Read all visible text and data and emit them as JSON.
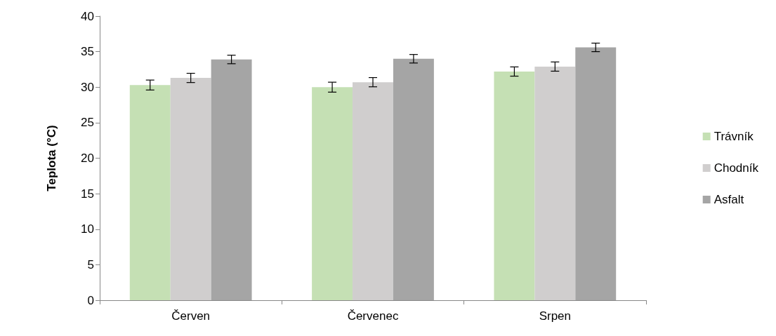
{
  "chart_data": {
    "type": "bar",
    "ylabel": "Teplota (°C)",
    "categories": [
      "Červen",
      "Červenec",
      "Srpen"
    ],
    "series": [
      {
        "name": "Trávník",
        "color": "#c5e0b4",
        "values": [
          30.3,
          30.0,
          32.2
        ],
        "errors": [
          0.7,
          0.7,
          0.65
        ]
      },
      {
        "name": "Chodník",
        "color": "#d0cece",
        "values": [
          31.3,
          30.7,
          32.9
        ],
        "errors": [
          0.65,
          0.65,
          0.65
        ]
      },
      {
        "name": "Asfalt",
        "color": "#a5a5a5",
        "values": [
          33.9,
          34.0,
          35.6
        ],
        "errors": [
          0.6,
          0.6,
          0.6
        ]
      }
    ],
    "ylim": [
      0,
      40
    ],
    "yticks": [
      0,
      5,
      10,
      15,
      20,
      25,
      30,
      35,
      40
    ],
    "grid": false,
    "legend": "right"
  }
}
